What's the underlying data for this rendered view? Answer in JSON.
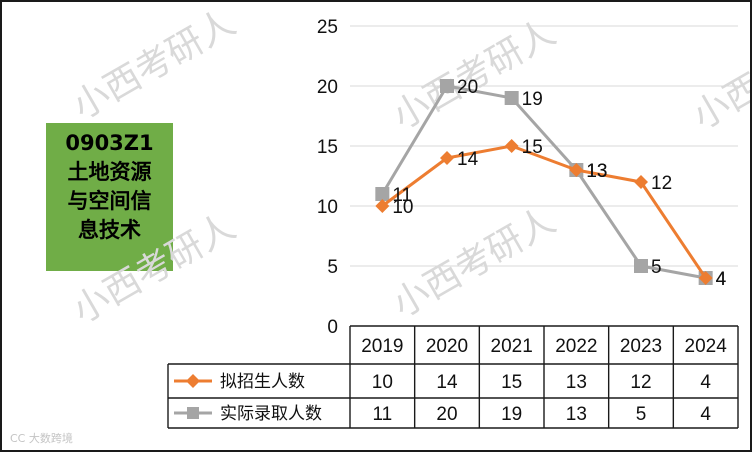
{
  "label_box": {
    "lines": [
      "0903Z1",
      "土地资源",
      "与空间信",
      "息技术"
    ]
  },
  "watermarks": [
    "小西考研人",
    "小西考研人",
    "小西考研人",
    "小西考研人",
    "小西考研人"
  ],
  "footer_mark": "CC 大数跨境",
  "colors": {
    "orange": "#ed7d31",
    "gray": "#a5a5a5",
    "box_green": "#70ad47"
  },
  "chart_data": {
    "type": "line",
    "categories": [
      "2019",
      "2020",
      "2021",
      "2022",
      "2023",
      "2024"
    ],
    "ylim": [
      0,
      25
    ],
    "yticks": [
      0,
      5,
      10,
      15,
      20,
      25
    ],
    "grid": true,
    "series": [
      {
        "name": "拟招生人数",
        "values": [
          10,
          14,
          15,
          13,
          12,
          4
        ],
        "marker": "diamond",
        "color": "#ed7d31"
      },
      {
        "name": "实际录取人数",
        "values": [
          11,
          20,
          19,
          13,
          5,
          4
        ],
        "marker": "square",
        "color": "#a5a5a5"
      }
    ],
    "data_table": true
  }
}
